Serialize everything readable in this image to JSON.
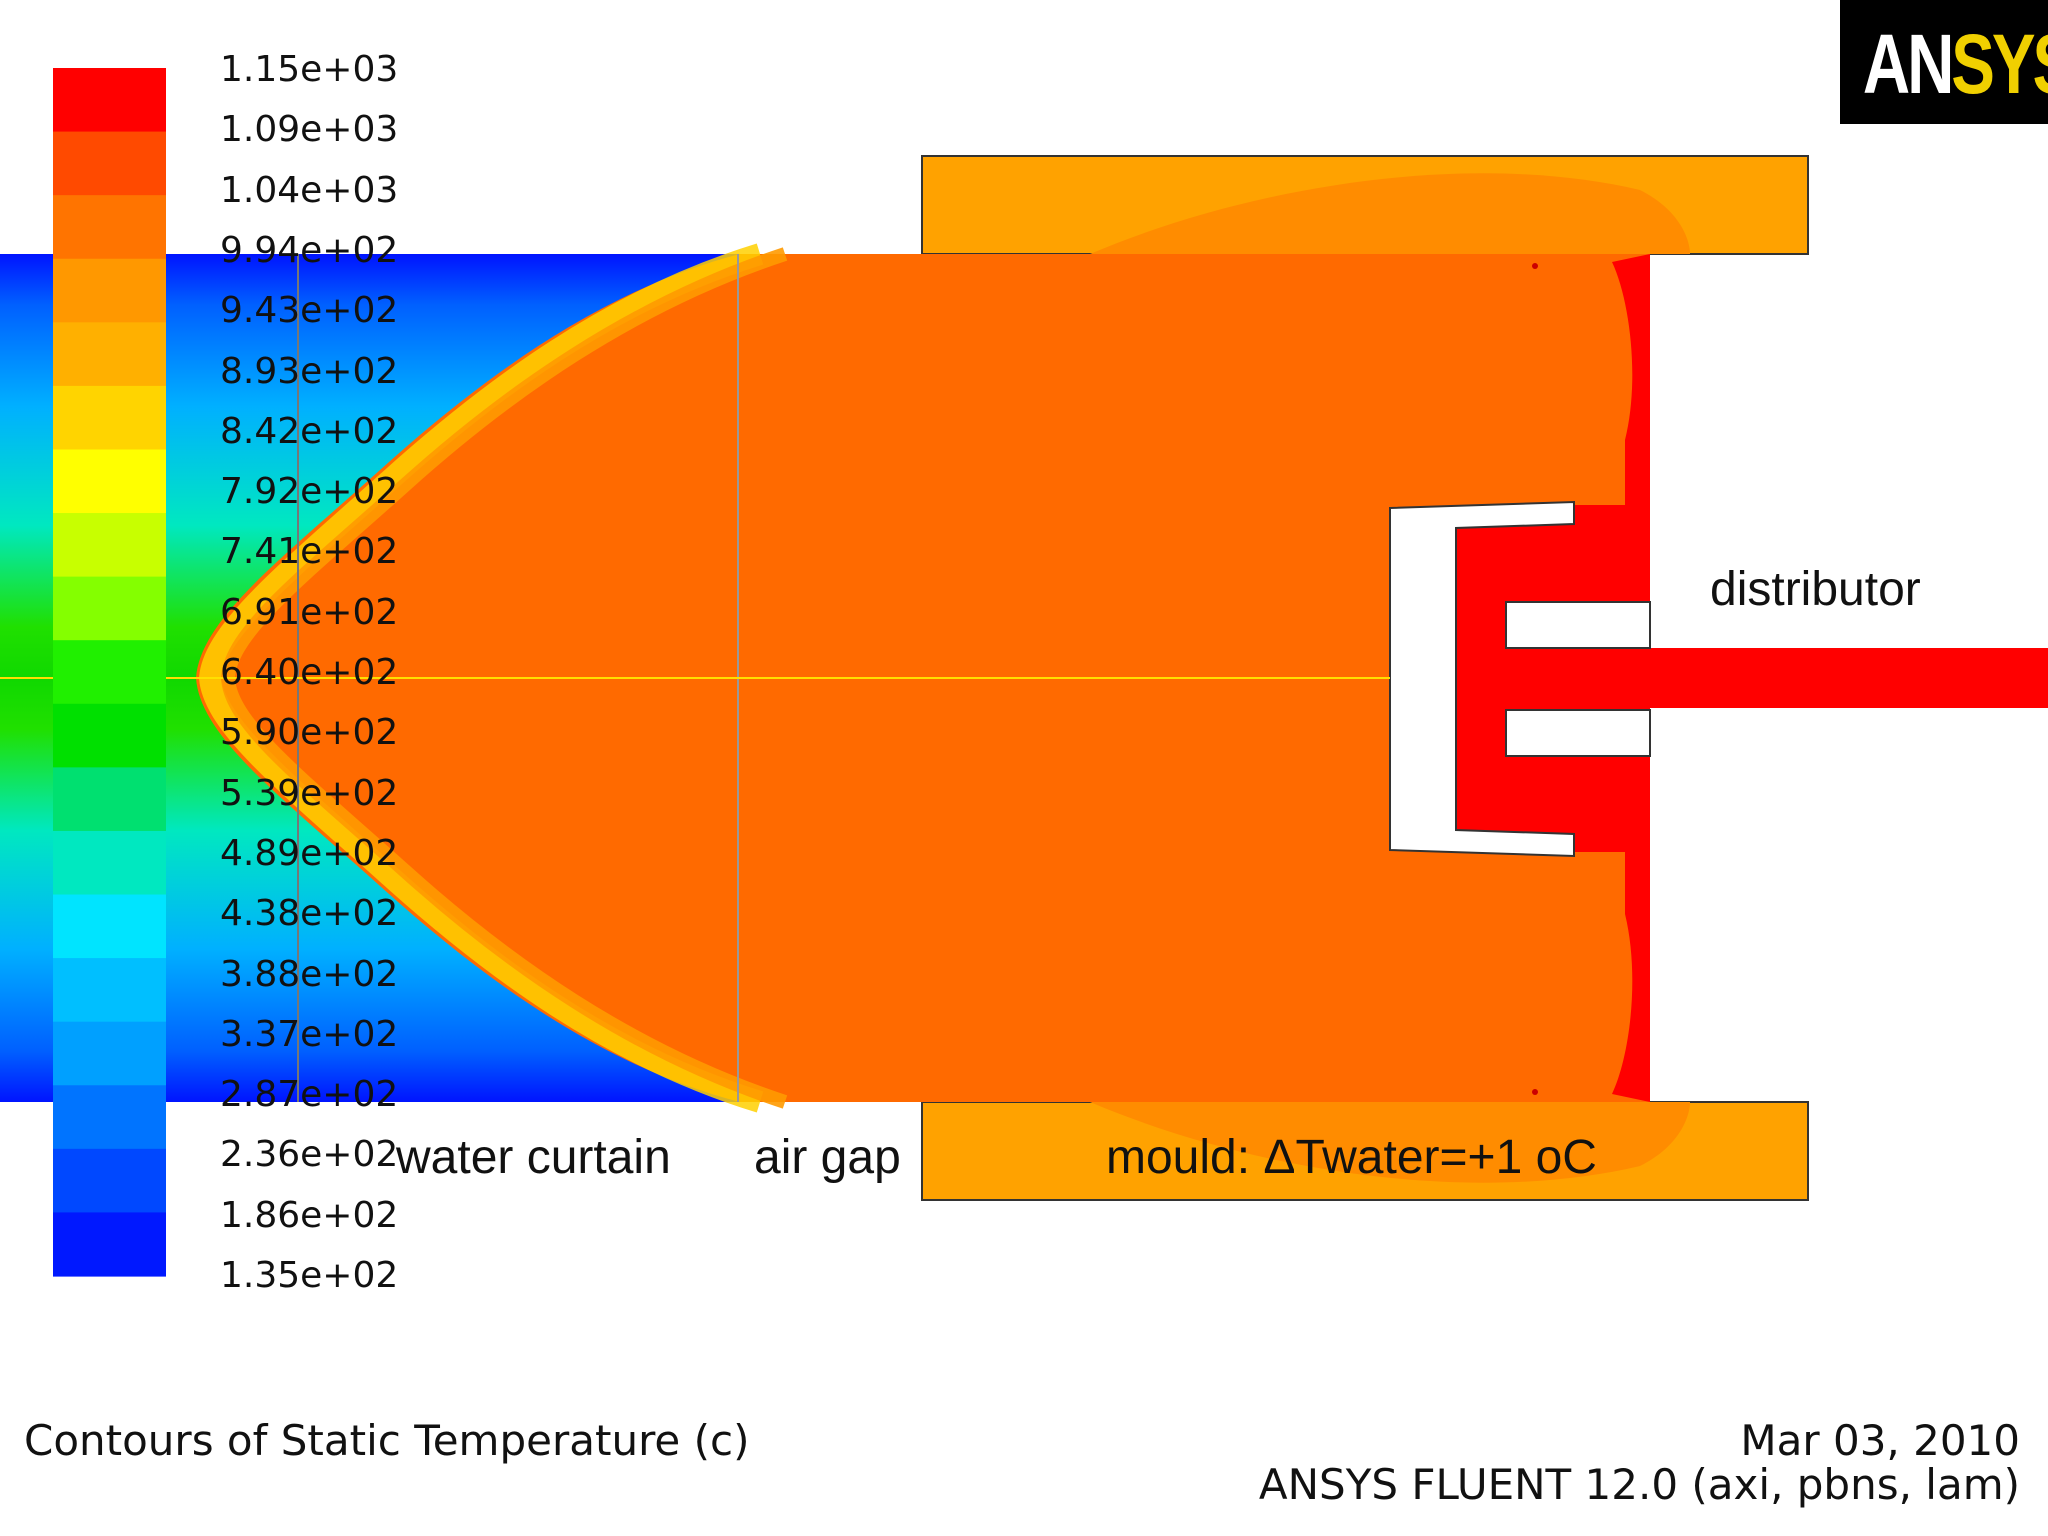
{
  "legend": {
    "labels": [
      "1.15e+03",
      "1.09e+03",
      "1.04e+03",
      "9.94e+02",
      "9.43e+02",
      "8.93e+02",
      "8.42e+02",
      "7.92e+02",
      "7.41e+02",
      "6.91e+02",
      "6.40e+02",
      "5.90e+02",
      "5.39e+02",
      "4.89e+02",
      "4.38e+02",
      "3.88e+02",
      "3.37e+02",
      "2.87e+02",
      "2.36e+02",
      "1.86e+02",
      "1.35e+02"
    ],
    "colors": [
      "#ff0000",
      "#ff4a00",
      "#ff7400",
      "#ff9800",
      "#ffb000",
      "#ffd400",
      "#ffff00",
      "#c8ff00",
      "#84ff00",
      "#20f000",
      "#00e000",
      "#00e070",
      "#00e8c0",
      "#00e4ff",
      "#00bfff",
      "#00a0ff",
      "#0074ff",
      "#0048ff",
      "#0018ff"
    ]
  },
  "contour": {
    "colors": {
      "cast": "#ff6a00",
      "mould": "#ffa200",
      "hot": "#ff0000",
      "void": "#ffffff",
      "axis": "#ffdf00"
    }
  },
  "annotations": {
    "water_curtain": "water curtain",
    "air_gap": "air gap",
    "mould": "mould: ΔTwater=+1 oC",
    "distributor": "distributor"
  },
  "logo": {
    "white_part": "AN",
    "yellow_part": "SYS"
  },
  "footer": {
    "title": "Contours of Static Temperature (c)",
    "date": "Mar 03, 2010",
    "software": "ANSYS FLUENT 12.0 (axi, pbns, lam)"
  }
}
